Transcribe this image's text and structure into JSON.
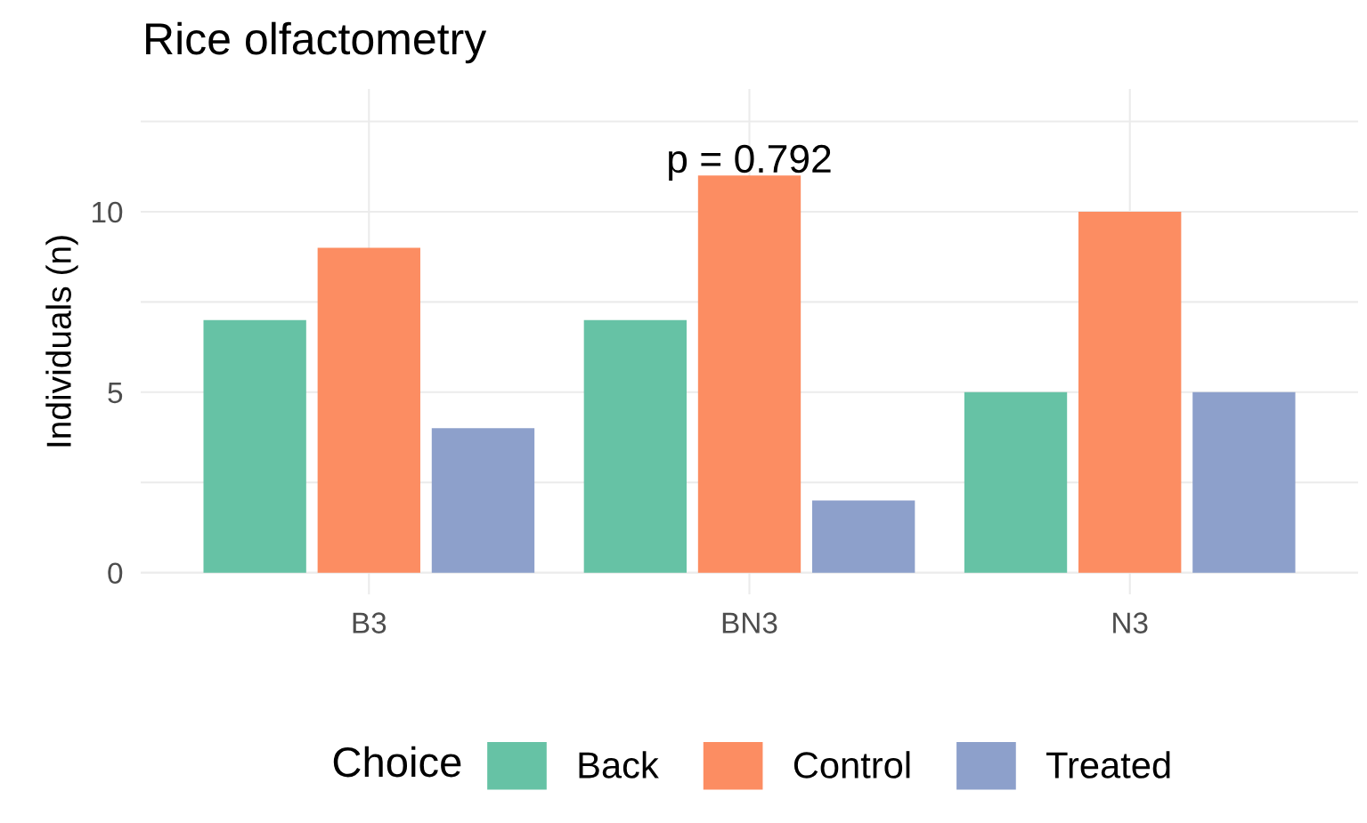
{
  "chart_data": {
    "type": "bar",
    "title": "Rice olfactometry",
    "ylabel": "Individuals (n)",
    "legend_title": "Choice",
    "categories": [
      "B3",
      "BN3",
      "N3"
    ],
    "series": [
      {
        "name": "Back",
        "color": "#66c2a5",
        "values": [
          7,
          7,
          5
        ]
      },
      {
        "name": "Control",
        "color": "#fc8d62",
        "values": [
          9,
          11,
          10
        ]
      },
      {
        "name": "Treated",
        "color": "#8da0cb",
        "values": [
          4,
          2,
          5
        ]
      }
    ],
    "ylim": [
      -0.6,
      13.4
    ],
    "yticks": [
      0,
      {
        "value": 2.5,
        "label": null
      },
      5,
      {
        "value": 7.5,
        "label": null
      },
      10,
      {
        "value": 12.5,
        "label": null
      }
    ],
    "annotations": [
      "p = 0.792"
    ],
    "grid": true,
    "legend": "bottom"
  }
}
